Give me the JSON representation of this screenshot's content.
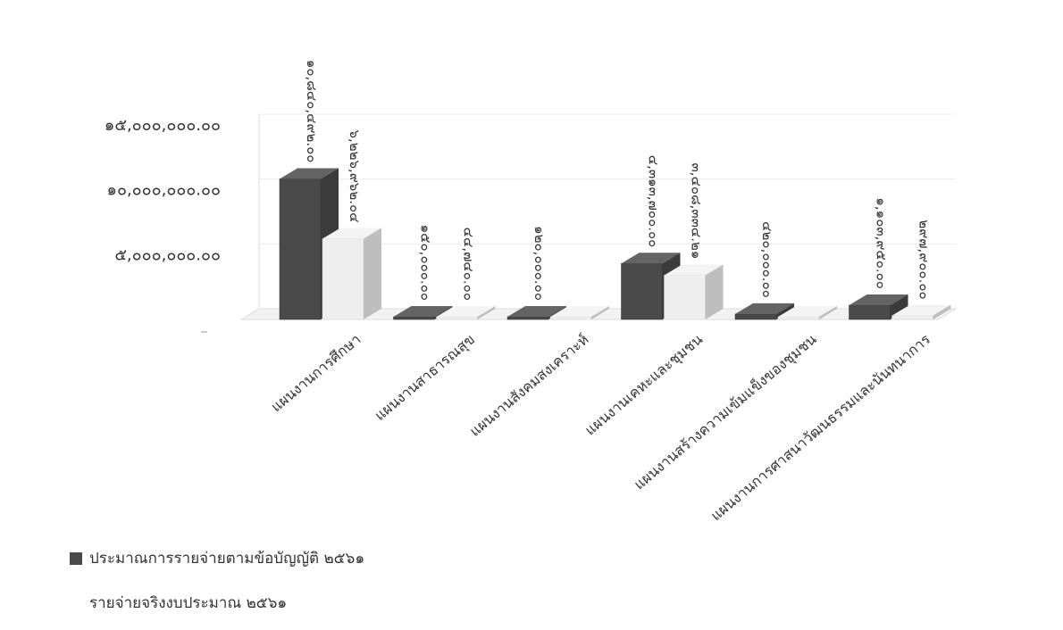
{
  "chart_data": {
    "type": "bar",
    "style": "3d-grouped",
    "title": "",
    "xlabel": "",
    "ylabel": "",
    "ylim": [
      0,
      15000000
    ],
    "y_ticks": [
      5000000,
      10000000,
      15000000
    ],
    "y_tick_labels": [
      "๕,๐๐๐,๐๐๐.๐๐",
      "๑๐,๐๐๐,๐๐๐.๐๐",
      "๑๕,๐๐๐,๐๐๐.๐๐"
    ],
    "grid": true,
    "legend_position": "bottom-left",
    "categories": [
      "แผนงานการศึกษา",
      "แผนงานสาธารณสุข",
      "แผนงานสังคมสงเคราะห์",
      "แผนงานเคหะและชุมชน",
      "แผนงานสร้างความเข้มแข็งของชุมชน",
      "แผนงานการศาสนาวัฒนธรรมและนันทนาการ"
    ],
    "series": [
      {
        "name": "ประมาณการรายจ่ายตามข้อบัญญัติ ๒๕๖๑",
        "color": "#4a4a4a",
        "values": [
          10840492,
          150000,
          120000,
          4313700,
          420000,
          1103950
        ],
        "labels": [
          "๑๐,๘๔๐,๔๙๒.๐๐",
          "๑๕๐,๐๐๐.๐๐",
          "๑๒๐,๐๐๐.๐๐",
          "๔,๓๑๓,๗๐๐.๐๐",
          "๔๒๐,๐๐๐.๐๐",
          "๑,๑๐๓,๙๕๐.๐๐"
        ]
      },
      {
        "name": "รายจ่ายจริงงบประมาณ ๒๕๖๑",
        "color": "#eeeeee",
        "values": [
          6226962.04,
          44740,
          0,
          3408334.21,
          0,
          297900
        ],
        "labels": [
          "๖,๒๒๖,๙๖๒.๐๔",
          "๔๔,๗๔๐.๐๐",
          "",
          "๓,๔๐๘,๓๓๔.๒๑",
          "",
          "๒๙๗,๙๐๐.๐๐"
        ]
      }
    ]
  }
}
